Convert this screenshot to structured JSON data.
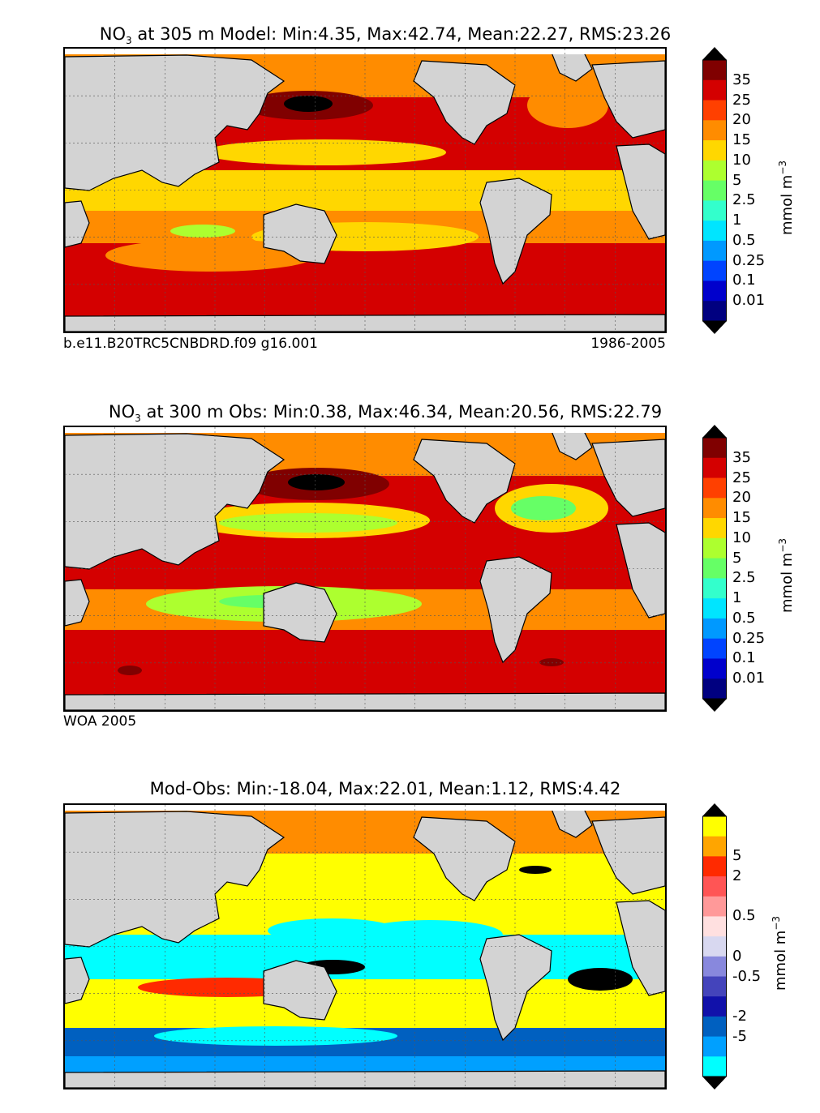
{
  "figure": {
    "units_main": "mmol m",
    "units_exp": "−3"
  },
  "panels": [
    {
      "title_prefix": "NO",
      "title_sub": "3",
      "title_rest": " at 305 m Model: Min:4.35, Max:42.74, Mean:22.27, RMS:23.26",
      "left_caption": "b.e11.B20TRC5CNBDRD.f09 g16.001",
      "right_caption": "1986-2005"
    },
    {
      "title_prefix": "NO",
      "title_sub": "3",
      "title_rest": " at 300 m Obs: Min:0.38, Max:46.34, Mean:20.56, RMS:22.79",
      "left_caption": "WOA 2005",
      "right_caption": ""
    },
    {
      "title_prefix": "",
      "title_sub": "",
      "title_rest": "Mod-Obs: Min:-18.04, Max:22.01, Mean:1.12, RMS:4.42",
      "left_caption": "",
      "right_caption": ""
    }
  ],
  "chart_data": [
    {
      "type": "heatmap",
      "title": "NO3 at 305 m Model: Min:4.35, Max:42.74, Mean:22.27, RMS:23.26",
      "stats": {
        "min": 4.35,
        "max": 42.74,
        "mean": 22.27,
        "rms": 23.26
      },
      "depth_m": 305,
      "source": "Model",
      "colorbar": {
        "label": "mmol m^-3",
        "ticks": [
          "35",
          "25",
          "20",
          "15",
          "10",
          "5",
          "2.5",
          "1",
          "0.5",
          "0.25",
          "0.1",
          "0.01"
        ],
        "colors": [
          "#800000",
          "#d40000",
          "#ff4000",
          "#ff8c00",
          "#ffd700",
          "#adff2f",
          "#66ff66",
          "#33ffcc",
          "#00e5ff",
          "#0099ff",
          "#0044ff",
          "#0000cc",
          "#000080"
        ]
      }
    },
    {
      "type": "heatmap",
      "title": "NO3 at 300 m Obs: Min:0.38, Max:46.34, Mean:20.56, RMS:22.79",
      "stats": {
        "min": 0.38,
        "max": 46.34,
        "mean": 20.56,
        "rms": 22.79
      },
      "depth_m": 300,
      "source": "Obs",
      "colorbar": {
        "label": "mmol m^-3",
        "ticks": [
          "35",
          "25",
          "20",
          "15",
          "10",
          "5",
          "2.5",
          "1",
          "0.5",
          "0.25",
          "0.1",
          "0.01"
        ],
        "colors": [
          "#800000",
          "#d40000",
          "#ff4000",
          "#ff8c00",
          "#ffd700",
          "#adff2f",
          "#66ff66",
          "#33ffcc",
          "#00e5ff",
          "#0099ff",
          "#0044ff",
          "#0000cc",
          "#000080"
        ]
      }
    },
    {
      "type": "heatmap",
      "title": "Mod-Obs: Min:-18.04, Max:22.01, Mean:1.12, RMS:4.42",
      "stats": {
        "min": -18.04,
        "max": 22.01,
        "mean": 1.12,
        "rms": 4.42
      },
      "colorbar": {
        "label": "mmol m^-3",
        "ticks": [
          "5",
          "2",
          "0.5",
          "0",
          "-0.5",
          "-2",
          "-5"
        ],
        "colors": [
          "#ffff00",
          "#ffa500",
          "#ff2a00",
          "#ff5555",
          "#ff9999",
          "#ffe0e0",
          "#d8d8f0",
          "#8888dd",
          "#4444bb",
          "#1111aa",
          "#0060c0",
          "#00a0ff",
          "#00ffff"
        ]
      }
    }
  ]
}
